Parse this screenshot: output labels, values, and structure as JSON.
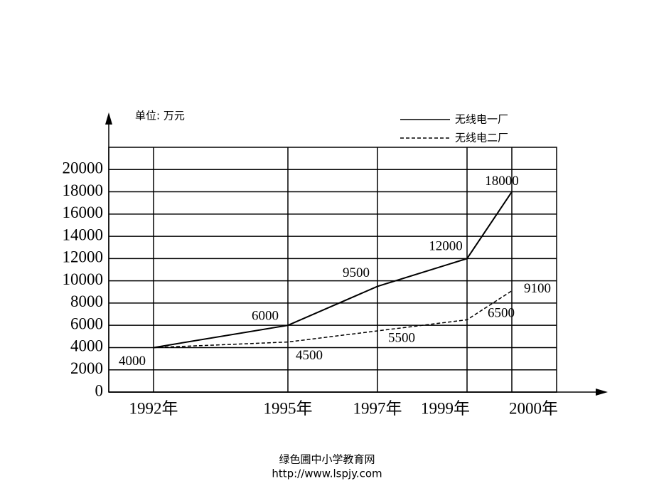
{
  "chart_data": {
    "type": "line",
    "y_unit": "单位: 万元",
    "x": [
      1992,
      1995,
      1997,
      1999,
      2000
    ],
    "xlim": [
      1991,
      2001
    ],
    "xticks": [
      {
        "value": 1992,
        "label": "1992年"
      },
      {
        "value": 1995,
        "label": "1995年"
      },
      {
        "value": 1997,
        "label": "1997年"
      },
      {
        "value": 1999,
        "label": "1999年"
      },
      {
        "value": 2000,
        "label": "2000年"
      }
    ],
    "ylim": [
      0,
      22000
    ],
    "yticks": [
      0,
      2000,
      4000,
      6000,
      8000,
      10000,
      12000,
      14000,
      16000,
      18000,
      20000
    ],
    "grid": true,
    "series": [
      {
        "name": "无线电一厂",
        "color": "#000000",
        "dash": false,
        "values": [
          4000,
          6000,
          9500,
          12000,
          18000
        ]
      },
      {
        "name": "无线电二厂",
        "color": "#000000",
        "dash": true,
        "values": [
          4000,
          4500,
          5500,
          6500,
          9100
        ]
      }
    ]
  },
  "footer": {
    "site": "绿色圃中小学教育网",
    "url": "http://www.lspjy.com"
  }
}
